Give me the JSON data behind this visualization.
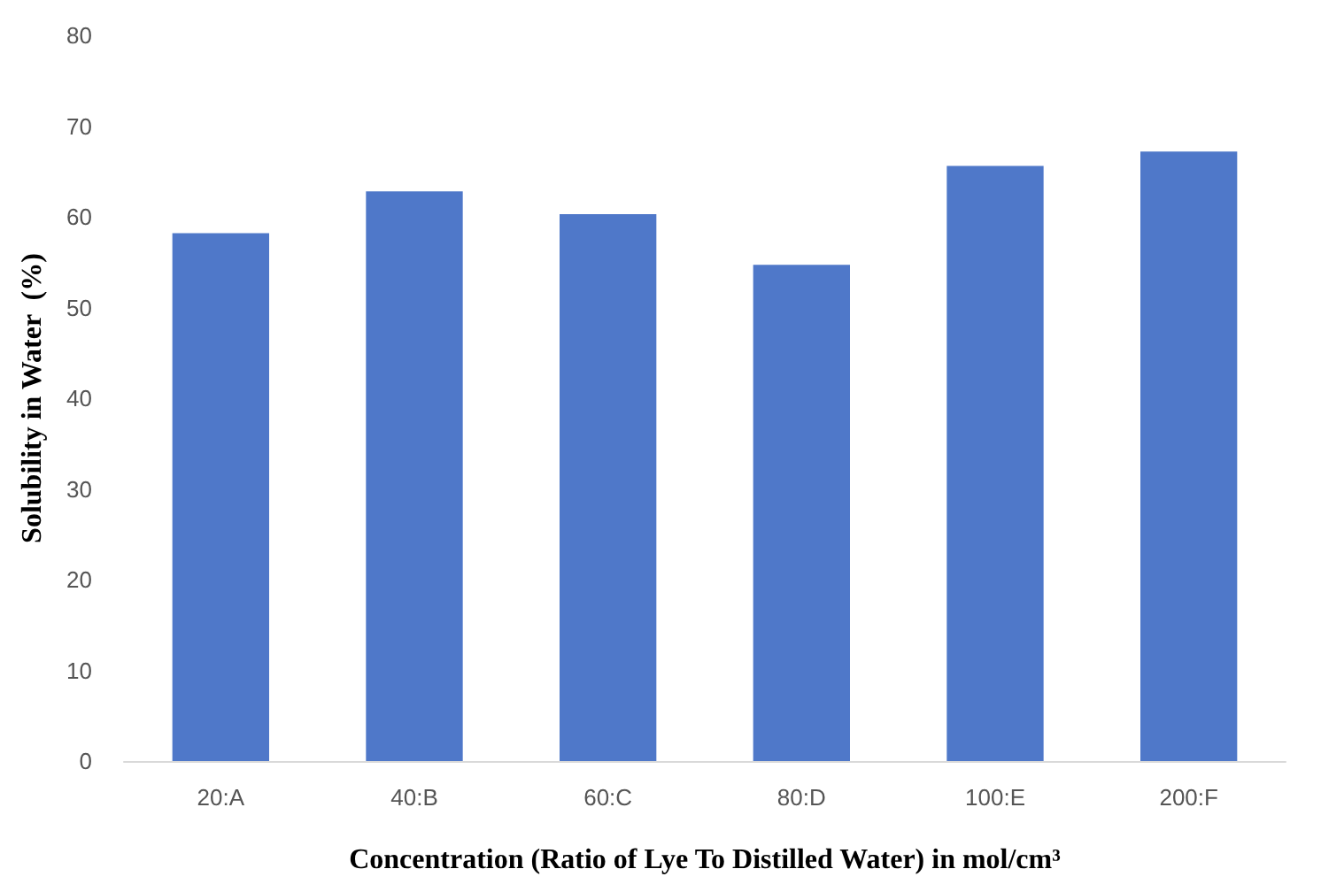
{
  "chart_data": {
    "type": "bar",
    "xlabel": "Concentration (Ratio of Lye To Distilled Water) in mol/cm³",
    "ylabel": "Solubility in Water  (%)",
    "categories": [
      "20:A",
      "40:B",
      "60:C",
      "80:D",
      "100:E",
      "200:F"
    ],
    "values": [
      58.2,
      62.8,
      60.3,
      54.7,
      65.6,
      67.2
    ],
    "color": "#4f78c9",
    "ylim": [
      0,
      80
    ],
    "yticks": [
      0,
      10,
      20,
      30,
      40,
      50,
      60,
      70,
      80
    ],
    "grid": false
  }
}
